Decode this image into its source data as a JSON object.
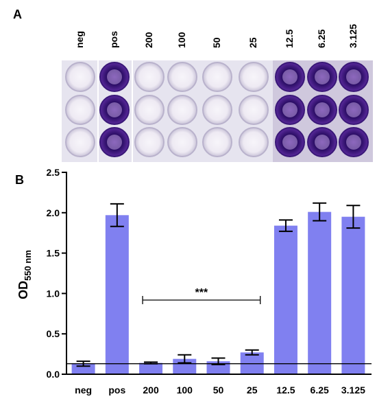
{
  "panel_a": {
    "letter": "A",
    "column_labels": [
      "neg",
      "pos",
      "200",
      "100",
      "50",
      "25",
      "12.5",
      "6.25",
      "3.125"
    ],
    "well_rows": 3,
    "well_intensity": [
      0.03,
      0.95,
      0.03,
      0.05,
      0.05,
      0.08,
      0.95,
      0.97,
      0.95
    ],
    "colors": {
      "plate": "#e6e4ef",
      "light_well": "#eeeaf3",
      "dark_well": "#5a2a9c",
      "dark_core": "#2c0e66"
    }
  },
  "panel_b": {
    "letter": "B"
  },
  "chart_data": {
    "type": "bar",
    "categories": [
      "neg",
      "pos",
      "200",
      "100",
      "50",
      "25",
      "12.5",
      "6.25",
      "3.125"
    ],
    "values": [
      0.13,
      1.97,
      0.14,
      0.19,
      0.16,
      0.27,
      1.84,
      2.01,
      1.95
    ],
    "errors": [
      0.03,
      0.14,
      0.01,
      0.05,
      0.04,
      0.03,
      0.07,
      0.11,
      0.14
    ],
    "title": "",
    "xlabel": "",
    "ylabel": "OD",
    "ylabel_subscript": "550 nm",
    "ylim": [
      0.0,
      2.5
    ],
    "yticks": [
      "0.0",
      "0.5",
      "1.0",
      "1.5",
      "2.0",
      "2.5"
    ],
    "baseline": 0.13,
    "significance": {
      "label": "***",
      "from": "200",
      "to": "25"
    },
    "bar_color": "#8080f0",
    "grid": false
  }
}
